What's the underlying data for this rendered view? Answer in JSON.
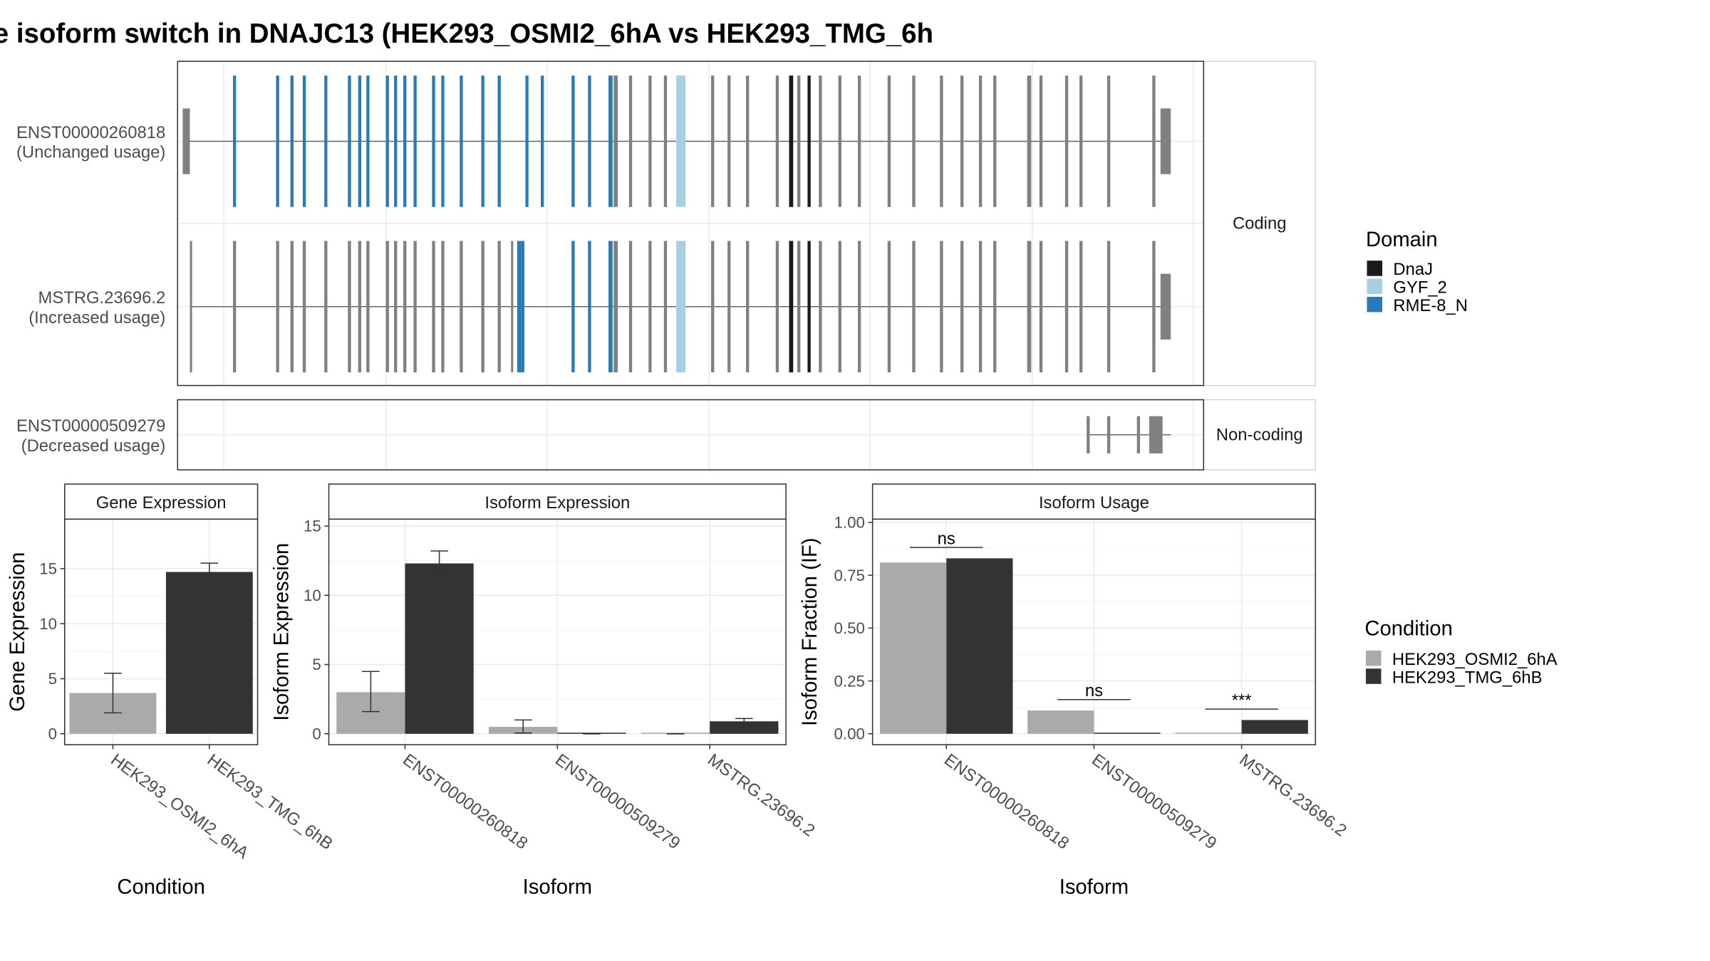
{
  "title": "e isoform switch in DNAJC13 (HEK293_OSMI2_6hA vs HEK293_TMG_6h",
  "colors": {
    "exon_default": "#808080",
    "domains": {
      "DnaJ": "#1a1a1a",
      "GYF_2": "#a6cee3",
      "RME-8_N": "#2a7ab5"
    },
    "conditions": {
      "HEK293_OSMI2_6hA": "#aaaaaa",
      "HEK293_TMG_6hB": "#333333"
    }
  },
  "transcripts": {
    "facets": [
      {
        "label": "Coding",
        "rows": [
          {
            "name": "ENST00000260818",
            "usage": "(Unchanged usage)",
            "start": 0.005,
            "end": 0.968,
            "exons": [
              {
                "x": 0.005,
                "w": 0.007,
                "h": "utr"
              },
              {
                "x": 0.054,
                "w": 0.003,
                "d": "RME-8_N"
              },
              {
                "x": 0.096,
                "w": 0.003,
                "d": "RME-8_N"
              },
              {
                "x": 0.11,
                "w": 0.003,
                "d": "RME-8_N"
              },
              {
                "x": 0.122,
                "w": 0.003,
                "d": "RME-8_N"
              },
              {
                "x": 0.143,
                "w": 0.003,
                "d": "RME-8_N"
              },
              {
                "x": 0.166,
                "w": 0.003,
                "d": "RME-8_N"
              },
              {
                "x": 0.176,
                "w": 0.003,
                "d": "RME-8_N"
              },
              {
                "x": 0.184,
                "w": 0.003,
                "d": "RME-8_N"
              },
              {
                "x": 0.203,
                "w": 0.003,
                "d": "RME-8_N"
              },
              {
                "x": 0.211,
                "w": 0.003,
                "d": "RME-8_N"
              },
              {
                "x": 0.22,
                "w": 0.003,
                "d": "RME-8_N"
              },
              {
                "x": 0.23,
                "w": 0.003,
                "d": "RME-8_N"
              },
              {
                "x": 0.248,
                "w": 0.003,
                "d": "RME-8_N"
              },
              {
                "x": 0.257,
                "w": 0.003,
                "d": "RME-8_N"
              },
              {
                "x": 0.275,
                "w": 0.003,
                "d": "RME-8_N"
              },
              {
                "x": 0.296,
                "w": 0.003,
                "d": "RME-8_N"
              },
              {
                "x": 0.312,
                "w": 0.003,
                "d": "RME-8_N"
              },
              {
                "x": 0.339,
                "w": 0.003,
                "d": "RME-8_N"
              },
              {
                "x": 0.354,
                "w": 0.003,
                "d": "RME-8_N"
              },
              {
                "x": 0.384,
                "w": 0.003,
                "d": "RME-8_N"
              },
              {
                "x": 0.4,
                "w": 0.003,
                "d": "RME-8_N"
              },
              {
                "x": 0.42,
                "w": 0.004,
                "d": "RME-8_N"
              },
              {
                "x": 0.425,
                "w": 0.004
              },
              {
                "x": 0.44,
                "w": 0.003
              },
              {
                "x": 0.459,
                "w": 0.003
              },
              {
                "x": 0.474,
                "w": 0.003
              },
              {
                "x": 0.486,
                "w": 0.006,
                "d": "GYF_2"
              },
              {
                "x": 0.492,
                "w": 0.003,
                "d": "GYF_2"
              },
              {
                "x": 0.52,
                "w": 0.003
              },
              {
                "x": 0.536,
                "w": 0.003
              },
              {
                "x": 0.554,
                "w": 0.003
              },
              {
                "x": 0.583,
                "w": 0.003
              },
              {
                "x": 0.596,
                "w": 0.004,
                "d": "DnaJ"
              },
              {
                "x": 0.604,
                "w": 0.003
              },
              {
                "x": 0.614,
                "w": 0.003,
                "d": "DnaJ"
              },
              {
                "x": 0.625,
                "w": 0.003
              },
              {
                "x": 0.644,
                "w": 0.003
              },
              {
                "x": 0.663,
                "w": 0.003
              },
              {
                "x": 0.692,
                "w": 0.003
              },
              {
                "x": 0.716,
                "w": 0.003
              },
              {
                "x": 0.743,
                "w": 0.003
              },
              {
                "x": 0.763,
                "w": 0.003
              },
              {
                "x": 0.781,
                "w": 0.003
              },
              {
                "x": 0.795,
                "w": 0.003
              },
              {
                "x": 0.828,
                "w": 0.004
              },
              {
                "x": 0.84,
                "w": 0.003
              },
              {
                "x": 0.865,
                "w": 0.003
              },
              {
                "x": 0.879,
                "w": 0.003
              },
              {
                "x": 0.906,
                "w": 0.003
              },
              {
                "x": 0.95,
                "w": 0.003
              },
              {
                "x": 0.958,
                "w": 0.01,
                "h": "utr"
              }
            ]
          },
          {
            "name": "MSTRG.23696.2",
            "usage": "(Increased usage)",
            "start": 0.012,
            "end": 0.968,
            "exons": [
              {
                "x": 0.012,
                "w": 0.002
              },
              {
                "x": 0.054,
                "w": 0.003
              },
              {
                "x": 0.096,
                "w": 0.003
              },
              {
                "x": 0.11,
                "w": 0.003
              },
              {
                "x": 0.122,
                "w": 0.003
              },
              {
                "x": 0.143,
                "w": 0.003
              },
              {
                "x": 0.166,
                "w": 0.003
              },
              {
                "x": 0.176,
                "w": 0.003
              },
              {
                "x": 0.184,
                "w": 0.003
              },
              {
                "x": 0.203,
                "w": 0.003
              },
              {
                "x": 0.211,
                "w": 0.003
              },
              {
                "x": 0.22,
                "w": 0.003
              },
              {
                "x": 0.23,
                "w": 0.003
              },
              {
                "x": 0.248,
                "w": 0.003
              },
              {
                "x": 0.257,
                "w": 0.003
              },
              {
                "x": 0.275,
                "w": 0.003
              },
              {
                "x": 0.296,
                "w": 0.003
              },
              {
                "x": 0.312,
                "w": 0.003
              },
              {
                "x": 0.325,
                "w": 0.002
              },
              {
                "x": 0.331,
                "w": 0.004,
                "d": "RME-8_N"
              },
              {
                "x": 0.335,
                "w": 0.003,
                "d": "RME-8_N"
              },
              {
                "x": 0.384,
                "w": 0.003,
                "d": "RME-8_N"
              },
              {
                "x": 0.4,
                "w": 0.003,
                "d": "RME-8_N"
              },
              {
                "x": 0.42,
                "w": 0.004,
                "d": "RME-8_N"
              },
              {
                "x": 0.425,
                "w": 0.004
              },
              {
                "x": 0.44,
                "w": 0.003
              },
              {
                "x": 0.459,
                "w": 0.003
              },
              {
                "x": 0.474,
                "w": 0.003
              },
              {
                "x": 0.486,
                "w": 0.006,
                "d": "GYF_2"
              },
              {
                "x": 0.492,
                "w": 0.003,
                "d": "GYF_2"
              },
              {
                "x": 0.52,
                "w": 0.003
              },
              {
                "x": 0.536,
                "w": 0.003
              },
              {
                "x": 0.554,
                "w": 0.003
              },
              {
                "x": 0.583,
                "w": 0.003
              },
              {
                "x": 0.596,
                "w": 0.004,
                "d": "DnaJ"
              },
              {
                "x": 0.604,
                "w": 0.003
              },
              {
                "x": 0.614,
                "w": 0.003,
                "d": "DnaJ"
              },
              {
                "x": 0.625,
                "w": 0.003
              },
              {
                "x": 0.644,
                "w": 0.003
              },
              {
                "x": 0.663,
                "w": 0.003
              },
              {
                "x": 0.692,
                "w": 0.003
              },
              {
                "x": 0.716,
                "w": 0.003
              },
              {
                "x": 0.743,
                "w": 0.003
              },
              {
                "x": 0.763,
                "w": 0.003
              },
              {
                "x": 0.781,
                "w": 0.003
              },
              {
                "x": 0.795,
                "w": 0.003
              },
              {
                "x": 0.828,
                "w": 0.004
              },
              {
                "x": 0.84,
                "w": 0.003
              },
              {
                "x": 0.865,
                "w": 0.003
              },
              {
                "x": 0.879,
                "w": 0.003
              },
              {
                "x": 0.906,
                "w": 0.003
              },
              {
                "x": 0.95,
                "w": 0.003
              },
              {
                "x": 0.958,
                "w": 0.01,
                "h": "utr"
              }
            ]
          }
        ]
      },
      {
        "label": "Non-coding",
        "rows": [
          {
            "name": "ENST00000509279",
            "usage": "(Decreased usage)",
            "start": 0.886,
            "end": 0.968,
            "exons": [
              {
                "x": 0.886,
                "w": 0.003
              },
              {
                "x": 0.906,
                "w": 0.003
              },
              {
                "x": 0.935,
                "w": 0.003
              },
              {
                "x": 0.947,
                "w": 0.013
              }
            ]
          }
        ]
      }
    ]
  },
  "chart_data": [
    {
      "type": "bar",
      "title": "Gene Expression",
      "categories": [
        "HEK293_OSMI2_6hA",
        "HEK293_TMG_6hB"
      ],
      "values": [
        3.7,
        14.7
      ],
      "error_low": [
        1.9,
        14.0
      ],
      "error_high": [
        5.5,
        15.5
      ],
      "xlabel": "Condition",
      "ylabel": "Gene Expression",
      "ylim": [
        0,
        19.5
      ],
      "yticks": [
        0,
        5,
        10,
        15
      ]
    },
    {
      "type": "bar",
      "title": "Isoform Expression",
      "categories": [
        "ENST00000260818",
        "ENST00000509279",
        "MSTRG.23696.2"
      ],
      "series": [
        {
          "name": "HEK293_OSMI2_6hA",
          "values": [
            3.0,
            0.5,
            0.0
          ],
          "error_low": [
            1.6,
            0.05,
            0.0
          ],
          "error_high": [
            4.5,
            1.0,
            0.0
          ]
        },
        {
          "name": "HEK293_TMG_6hB",
          "values": [
            12.3,
            0.0,
            0.9
          ],
          "error_low": [
            11.5,
            0.0,
            0.8
          ],
          "error_high": [
            13.2,
            0.0,
            1.1
          ]
        }
      ],
      "xlabel": "Isoform",
      "ylabel": "Isoform Expression",
      "ylim": [
        0,
        15.5
      ],
      "yticks": [
        0,
        5,
        10,
        15
      ]
    },
    {
      "type": "bar",
      "title": "Isoform Usage",
      "categories": [
        "ENST00000260818",
        "ENST00000509279",
        "MSTRG.23696.2"
      ],
      "series": [
        {
          "name": "HEK293_OSMI2_6hA",
          "values": [
            0.81,
            0.11,
            0.0
          ]
        },
        {
          "name": "HEK293_TMG_6hB",
          "values": [
            0.83,
            0.0,
            0.065
          ]
        }
      ],
      "significance": [
        "ns",
        "ns",
        "***"
      ],
      "xlabel": "Isoform",
      "ylabel": "Isoform Fraction (IF)",
      "ylim": [
        0,
        1.0
      ],
      "yticks": [
        0.0,
        0.25,
        0.5,
        0.75,
        1.0
      ],
      "ytick_labels": [
        "0.00",
        "0.25",
        "0.50",
        "0.75",
        "1.00"
      ]
    }
  ],
  "legends": {
    "domain": {
      "title": "Domain",
      "items": [
        "DnaJ",
        "GYF_2",
        "RME-8_N"
      ]
    },
    "condition": {
      "title": "Condition",
      "items": [
        "HEK293_OSMI2_6hA",
        "HEK293_TMG_6hB"
      ]
    }
  }
}
